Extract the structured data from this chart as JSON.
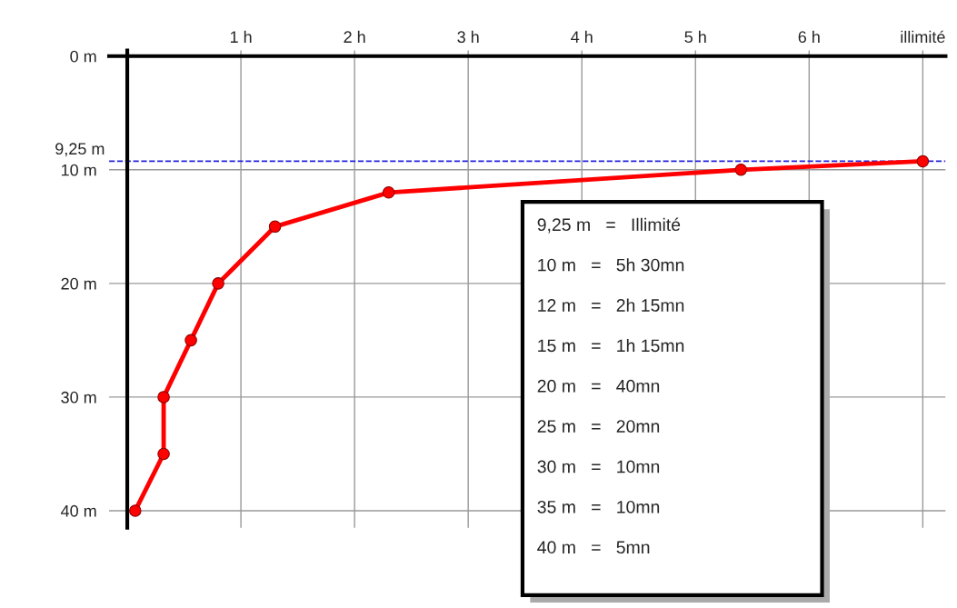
{
  "chart_data": {
    "type": "line",
    "x": [
      0.07,
      0.32,
      0.32,
      0.56,
      0.8,
      1.3,
      2.3,
      5.4,
      7
    ],
    "series": [
      {
        "color": "#ff0000",
        "values": [
          40,
          35,
          30,
          25,
          20,
          15,
          12,
          10,
          9.25
        ]
      }
    ],
    "marker": "circle",
    "line_style": "solid",
    "grid": true,
    "xlim": [
      -0.16,
      7.2
    ],
    "xticks": [
      {
        "value": 1,
        "label": "1 h"
      },
      {
        "value": 2,
        "label": "2 h"
      },
      {
        "value": 3,
        "label": "3 h"
      },
      {
        "value": 4,
        "label": "4 h"
      },
      {
        "value": 5,
        "label": "5 h"
      },
      {
        "value": 6,
        "label": "6 h"
      },
      {
        "value": 7,
        "label": "illimité"
      }
    ],
    "ylim": [
      41.5,
      -0.5
    ],
    "yticks": [
      {
        "value": 0,
        "label": "0 m"
      },
      {
        "value": 10,
        "label": "10 m"
      },
      {
        "value": 20,
        "label": "20 m"
      },
      {
        "value": 30,
        "label": "30 m"
      },
      {
        "value": 40,
        "label": "40 m"
      }
    ],
    "ref_lines": [
      {
        "axis": "y",
        "value": 9.25,
        "label": "9,25 m",
        "color": "#2222dd",
        "line_style": "dashed"
      }
    ],
    "annotations": [
      "9,25 m   =   Illimité",
      "10 m   =   5h 30mn",
      "12 m   =   2h 15mn",
      "15 m   =   1h 15mn",
      "20 m   =   40mn",
      "25 m   =   20mn",
      "30 m   =   10mn",
      "35 m   =   10mn",
      "40 m   =   5mn"
    ]
  }
}
